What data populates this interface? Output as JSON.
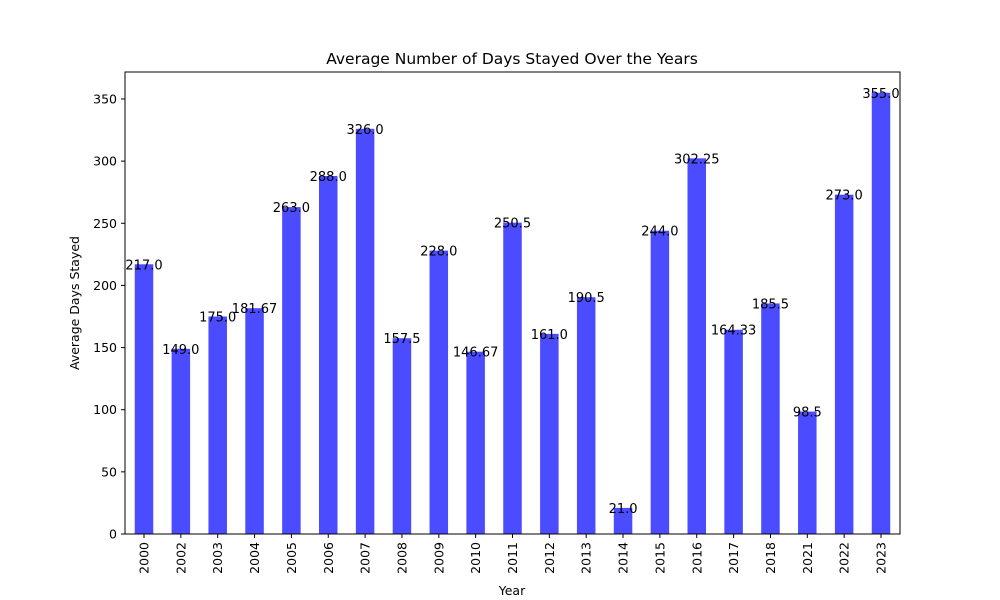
{
  "chart_data": {
    "type": "bar",
    "title": "Average Number of Days Stayed Over the Years",
    "xlabel": "Year",
    "ylabel": "Average Days Stayed",
    "ylim": [
      0,
      371.7
    ],
    "yticks": [
      0,
      50,
      100,
      150,
      200,
      250,
      300,
      350
    ],
    "categories": [
      "2000",
      "2002",
      "2003",
      "2004",
      "2005",
      "2006",
      "2007",
      "2008",
      "2009",
      "2010",
      "2011",
      "2012",
      "2013",
      "2014",
      "2015",
      "2016",
      "2017",
      "2018",
      "2021",
      "2022",
      "2023"
    ],
    "values": [
      217.0,
      149.0,
      175.0,
      181.67,
      263.0,
      288.0,
      326.0,
      157.5,
      228.0,
      146.67,
      250.5,
      161.0,
      190.5,
      21.0,
      244.0,
      302.25,
      164.33,
      185.5,
      98.5,
      273.0,
      355.0
    ],
    "value_labels": [
      "217.0",
      "149.0",
      "175.0",
      "181.67",
      "263.0",
      "288.0",
      "326.0",
      "157.5",
      "228.0",
      "146.67",
      "250.5",
      "161.0",
      "190.5",
      "21.0",
      "244.0",
      "302.25",
      "164.33",
      "185.5",
      "98.5",
      "273.0",
      "355.0"
    ],
    "bar_color": "#4b4bff",
    "grid": false,
    "legend": "none"
  }
}
